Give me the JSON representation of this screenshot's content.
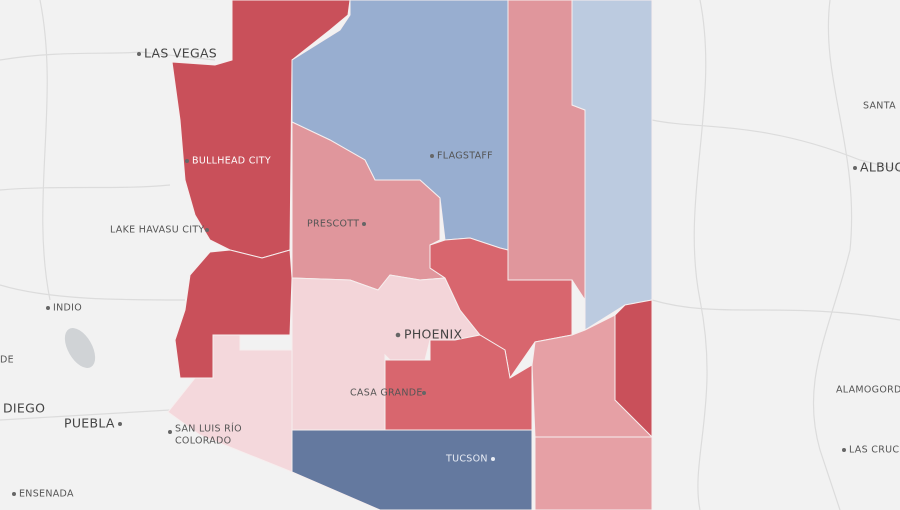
{
  "labels": {
    "las_vegas": "LAS VEGAS",
    "bullhead_city": "BULLHEAD CITY",
    "lake_havasu_city": "LAKE HAVASU CITY",
    "indio": "INDIO",
    "de": "DE",
    "diego": "DIEGO",
    "puebla": "PUEBLA",
    "san_luis_1": "SAN LUIS RÍO",
    "san_luis_2": "COLORADO",
    "ensenada": "ENSENADA",
    "prescott": "PRESCOTT",
    "flagstaff": "FLAGSTAFF",
    "phoenix": "PHOENIX",
    "casa_grande": "CASA GRANDE",
    "tucson": "TUCSON",
    "santa": "SANTA",
    "albuq": "ALBUQ",
    "alamogord": "ALAMOGORD",
    "las_cruce": "LAS CRUCE"
  }
}
